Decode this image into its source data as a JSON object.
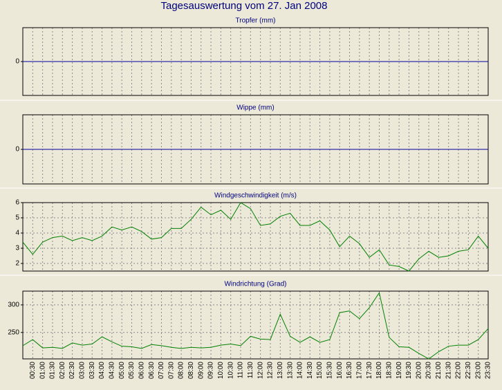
{
  "title": "Tagesauswertung vom 27. Jan 2008",
  "chart_data": [
    {
      "type": "line",
      "title": "Tropfer (mm)",
      "ylim": [
        -1,
        1
      ],
      "yticks": [
        0
      ],
      "grid": true,
      "series": [
        {
          "color": "#0000a0",
          "values": [
            0,
            0,
            0,
            0,
            0,
            0,
            0,
            0,
            0,
            0,
            0,
            0,
            0,
            0,
            0,
            0,
            0,
            0,
            0,
            0,
            0,
            0,
            0,
            0,
            0,
            0,
            0,
            0,
            0,
            0,
            0,
            0,
            0,
            0,
            0,
            0,
            0,
            0,
            0,
            0,
            0,
            0,
            0,
            0,
            0,
            0,
            0,
            0
          ]
        }
      ]
    },
    {
      "type": "line",
      "title": "Wippe (mm)",
      "ylim": [
        -1,
        1
      ],
      "yticks": [
        0
      ],
      "grid": true,
      "series": [
        {
          "color": "#0000a0",
          "values": [
            0,
            0,
            0,
            0,
            0,
            0,
            0,
            0,
            0,
            0,
            0,
            0,
            0,
            0,
            0,
            0,
            0,
            0,
            0,
            0,
            0,
            0,
            0,
            0,
            0,
            0,
            0,
            0,
            0,
            0,
            0,
            0,
            0,
            0,
            0,
            0,
            0,
            0,
            0,
            0,
            0,
            0,
            0,
            0,
            0,
            0,
            0,
            0
          ]
        }
      ]
    },
    {
      "type": "line",
      "title": "Windgeschwindigkeit (m/s)",
      "ylim": [
        1.5,
        6
      ],
      "yticks": [
        2,
        3,
        4,
        5,
        6
      ],
      "grid": true,
      "series": [
        {
          "color": "#008000",
          "values": [
            3.4,
            2.6,
            3.4,
            3.7,
            3.8,
            3.5,
            3.7,
            3.5,
            3.8,
            4.4,
            4.2,
            4.4,
            4.1,
            3.6,
            3.7,
            4.3,
            4.3,
            4.9,
            5.7,
            5.2,
            5.5,
            4.9,
            6.0,
            5.6,
            4.5,
            4.6,
            5.1,
            5.3,
            4.5,
            4.5,
            4.8,
            4.2,
            3.1,
            3.8,
            3.3,
            2.4,
            2.9,
            1.9,
            1.8,
            1.5,
            2.3,
            2.8,
            2.4,
            2.5,
            2.8,
            2.9,
            3.8,
            3.0
          ]
        }
      ]
    },
    {
      "type": "line",
      "title": "Windrichtung (Grad)",
      "ylim": [
        202,
        325
      ],
      "yticks": [
        250,
        300
      ],
      "grid": true,
      "categories": [
        null,
        "00:30",
        "01:00",
        "01:30",
        "02:00",
        "02:30",
        "03:00",
        "03:30",
        "04:00",
        "04:30",
        "05:00",
        "05:30",
        "06:00",
        "06:30",
        "07:00",
        "07:30",
        "08:00",
        "08:30",
        "09:00",
        "09:30",
        "10:00",
        "10:30",
        "11:00",
        "11:30",
        "12:00",
        "12:30",
        "13:00",
        "13:30",
        "14:00",
        "14:30",
        "15:00",
        "15:30",
        "16:00",
        "16:30",
        "17:00",
        "17:30",
        "18:00",
        "18:30",
        "19:00",
        "19:30",
        "20:00",
        "20:30",
        "21:00",
        "21:30",
        "22:00",
        "22:30",
        "23:00",
        "23:30"
      ],
      "series": [
        {
          "color": "#008000",
          "values": [
            226,
            237,
            222,
            223,
            221,
            231,
            227,
            229,
            242,
            233,
            225,
            224,
            221,
            228,
            226,
            223,
            221,
            223,
            222,
            223,
            227,
            229,
            226,
            243,
            238,
            237,
            283,
            243,
            232,
            242,
            232,
            237,
            286,
            289,
            275,
            295,
            322,
            241,
            224,
            223,
            212,
            202,
            215,
            225,
            227,
            227,
            237,
            257
          ]
        }
      ]
    }
  ]
}
